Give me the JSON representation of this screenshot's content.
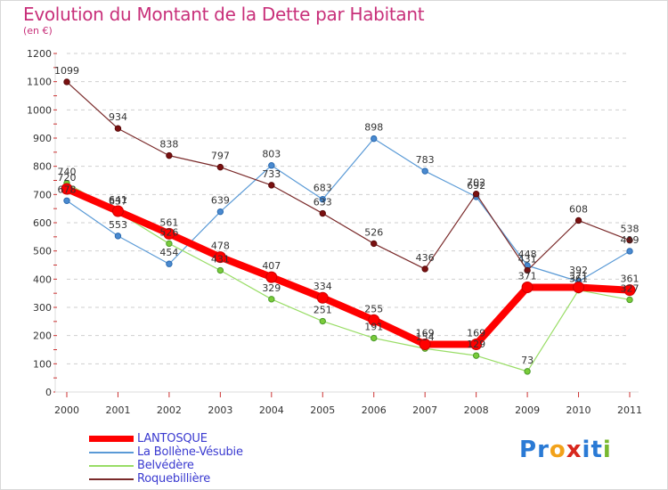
{
  "header": {
    "title": "Evolution du Montant de la Dette par Habitant",
    "unit": "(en €)"
  },
  "colors": {
    "title": "#c8307a",
    "LANTOSQUE": "#ff0000",
    "La Bollène-Vésubie": "#5a9ad6",
    "Belvédère": "#99dd66",
    "Roquebillière": "#7a2a2a"
  },
  "chart_data": {
    "type": "line",
    "title": "Evolution du Montant de la Dette par Habitant",
    "ylabel": "(en €)",
    "xlabel": "",
    "x": [
      "2000",
      "2001",
      "2002",
      "2003",
      "2004",
      "2005",
      "2006",
      "2007",
      "2008",
      "2009",
      "2010",
      "2011"
    ],
    "ylim": [
      0,
      1200
    ],
    "yticks": [
      "0",
      "100",
      "200",
      "300",
      "400",
      "500",
      "600",
      "700",
      "800",
      "900",
      "1000",
      "1100",
      "1200"
    ],
    "grid": "dashed horizontal",
    "legend": "bottom-left",
    "series": [
      {
        "name": "La Bollène-Vésubie",
        "values": [
          678,
          553,
          454,
          639,
          803,
          683,
          898,
          783,
          692,
          448,
          392,
          499
        ],
        "labels": [
          "678",
          "553",
          "454",
          "639",
          "803",
          "683",
          "898",
          "783",
          "692",
          "448",
          "392",
          "499"
        ]
      },
      {
        "name": "Belvédère",
        "values": [
          740,
          637,
          526,
          431,
          329,
          251,
          191,
          154,
          129,
          73,
          361,
          327
        ],
        "labels": [
          "740",
          "637",
          "526",
          "431",
          "329",
          "251",
          "191",
          "154",
          "129",
          "73",
          "361",
          "327"
        ]
      },
      {
        "name": "Roquebillière",
        "values": [
          1099,
          934,
          838,
          797,
          733,
          633,
          526,
          436,
          702,
          431,
          608,
          538
        ],
        "labels": [
          "1099",
          "934",
          "838",
          "797",
          "733",
          "633",
          "526",
          "436",
          "702",
          "431",
          "608",
          "538"
        ]
      },
      {
        "name": "LANTOSQUE",
        "values": [
          720,
          641,
          561,
          478,
          407,
          334,
          255,
          169,
          169,
          371,
          371,
          361
        ],
        "labels": [
          "720",
          "641",
          "561",
          "478",
          "407",
          "334",
          "255",
          "169",
          "169",
          "371",
          "371",
          "361"
        ]
      }
    ]
  },
  "legend": {
    "items": [
      "LANTOSQUE",
      "La Bollène-Vésubie",
      "Belvédère",
      "Roquebillière"
    ]
  },
  "logo": {
    "text": "Proxiti",
    "letters": [
      "P",
      "r",
      "o",
      "x",
      "i",
      "t",
      "i"
    ],
    "letter_colors": [
      "#2a7ad5",
      "#2a7ad5",
      "#f2a21a",
      "#d8281e",
      "#2a7ad5",
      "#2a7ad5",
      "#78b830"
    ]
  }
}
